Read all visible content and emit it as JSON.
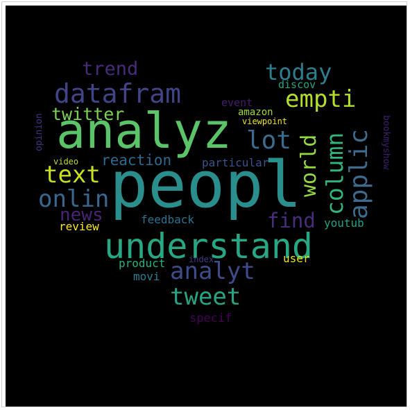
{
  "words": [
    {
      "id": "peopl",
      "text": "peopl",
      "color": "#2a8f8c"
    },
    {
      "id": "analyz",
      "text": "analyz",
      "color": "#5bc469"
    },
    {
      "id": "understand",
      "text": "understand",
      "color": "#27a784"
    },
    {
      "id": "datafram",
      "text": "datafram",
      "color": "#414487"
    },
    {
      "id": "today",
      "text": "today",
      "color": "#2d7e8e"
    },
    {
      "id": "empti",
      "text": "empti",
      "color": "#b4de2c"
    },
    {
      "id": "applic",
      "text": "applic",
      "color": "#3e6a8b"
    },
    {
      "id": "column",
      "text": "column",
      "color": "#31b57b"
    },
    {
      "id": "world",
      "text": "world",
      "color": "#95d840"
    },
    {
      "id": "lot",
      "text": "lot",
      "color": "#3a6d8d"
    },
    {
      "id": "text",
      "text": "text",
      "color": "#c8e020"
    },
    {
      "id": "onlin",
      "text": "onlin",
      "color": "#39688e"
    },
    {
      "id": "analyt",
      "text": "analyt",
      "color": "#3f4c8a"
    },
    {
      "id": "tweet",
      "text": "tweet",
      "color": "#29a386"
    },
    {
      "id": "trend",
      "text": "trend",
      "color": "#472c7a"
    },
    {
      "id": "twitter",
      "text": "twitter",
      "color": "#7cd250"
    },
    {
      "id": "reaction",
      "text": "reaction",
      "color": "#31688e"
    },
    {
      "id": "news",
      "text": "news",
      "color": "#482475"
    },
    {
      "id": "find",
      "text": "find",
      "color": "#472d7b"
    },
    {
      "id": "feedback",
      "text": "feedback",
      "color": "#2c728e"
    },
    {
      "id": "review",
      "text": "review",
      "color": "#fde725"
    },
    {
      "id": "youtub",
      "text": "youtub",
      "color": "#20a386"
    },
    {
      "id": "product",
      "text": "product",
      "color": "#2ab07f"
    },
    {
      "id": "movi",
      "text": "movi",
      "color": "#277f8e"
    },
    {
      "id": "user",
      "text": "user",
      "color": "#e5e419"
    },
    {
      "id": "index",
      "text": "index",
      "color": "#443983"
    },
    {
      "id": "specif",
      "text": "specif",
      "color": "#440154"
    },
    {
      "id": "particular",
      "text": "particular",
      "color": "#3b528b"
    },
    {
      "id": "video",
      "text": "video",
      "color": "#b8de29"
    },
    {
      "id": "opinion",
      "text": "opinion",
      "color": "#46337f"
    },
    {
      "id": "event",
      "text": "event",
      "color": "#481a6c"
    },
    {
      "id": "amazon",
      "text": "amazon",
      "color": "#a2da37"
    },
    {
      "id": "viewpoint",
      "text": "viewpoint",
      "color": "#f1e51d"
    },
    {
      "id": "discov",
      "text": "discov",
      "color": "#22a785"
    },
    {
      "id": "bookmyshow",
      "text": "bookmyshow",
      "color": "#3f1f6e"
    }
  ]
}
